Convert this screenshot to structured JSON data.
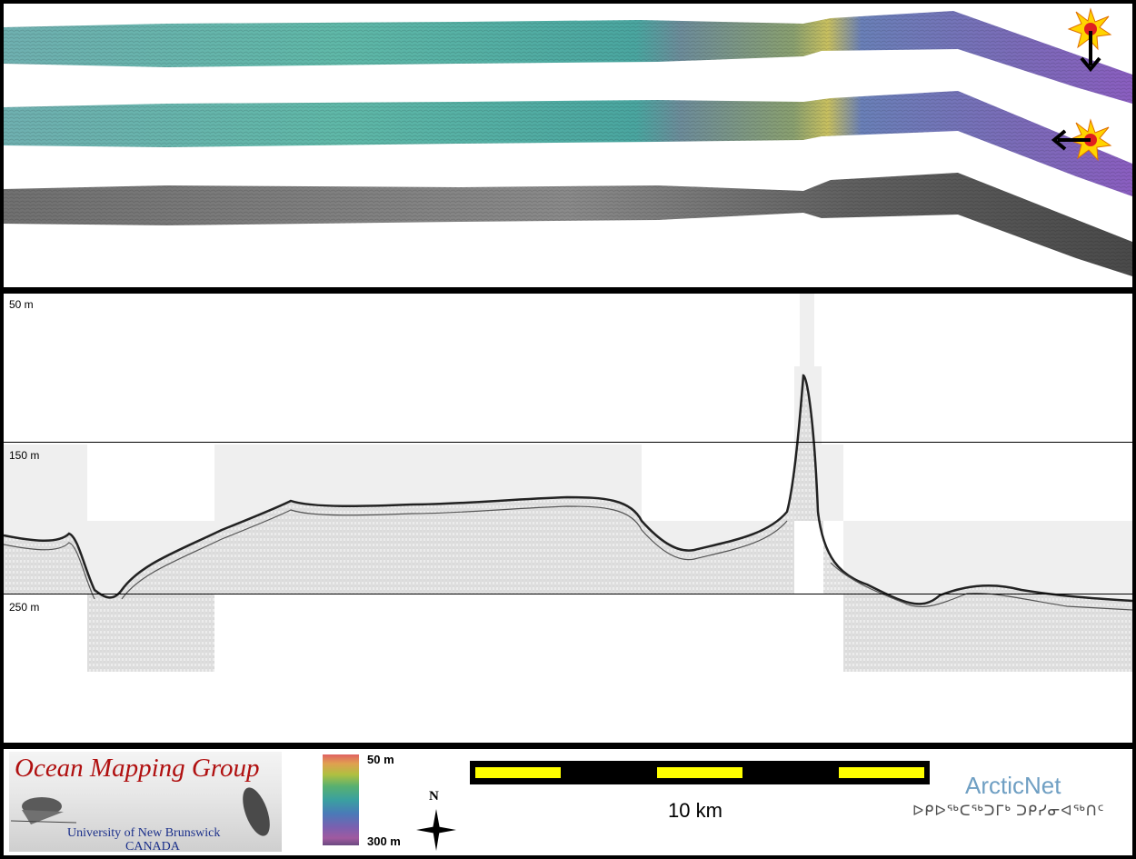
{
  "profile": {
    "depth_labels": [
      "50 m",
      "150 m",
      "250 m"
    ]
  },
  "legend": {
    "colorbar_top": "50 m",
    "colorbar_bottom": "300 m",
    "north_label": "N",
    "scale_label": "10 km"
  },
  "logos": {
    "omg_title": "Ocean Mapping Group",
    "omg_university": "University of New Brunswick",
    "omg_country": "CANADA",
    "arcticnet": "ArcticNet",
    "arcticnet_inuktitut": "ᐅᑭᐅᖅᑕᖅᑐᒥᒃ ᑐᑭᓯᓂᐊᖅᑎᑦ"
  },
  "colors": {
    "bathy_green": "#5fb8a8",
    "bathy_purple": "#7b6bb8",
    "scale_yellow": "#ffff00",
    "omg_red": "#b01010",
    "arcticnet_blue": "#6f9fc3"
  }
}
